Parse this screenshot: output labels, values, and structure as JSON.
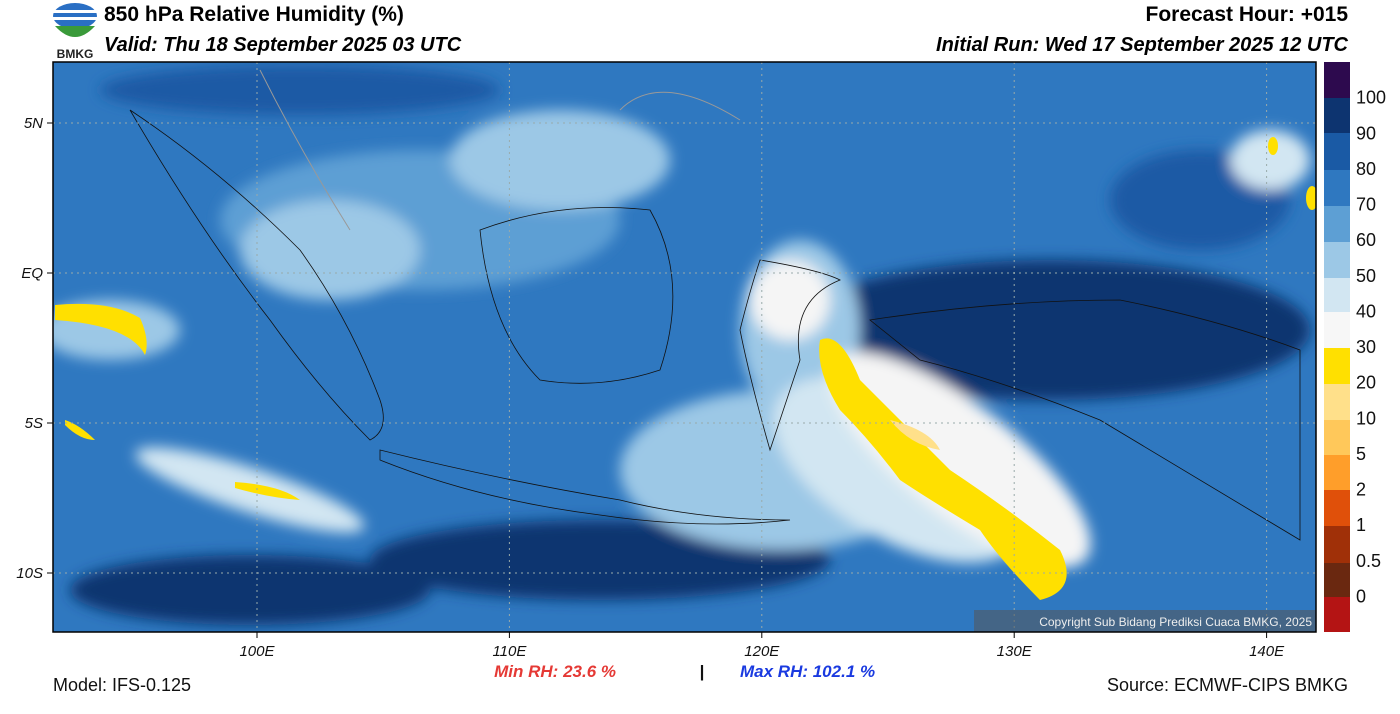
{
  "header": {
    "title": "850 hPa Relative Humidity (%)",
    "valid": "Valid: Thu 18 September 2025 03 UTC",
    "forecast_hour": "Forecast Hour: +015",
    "initial_run": "Initial Run: Wed 17 September 2025 12 UTC",
    "logo_text": "BMKG"
  },
  "map": {
    "lat_labels": [
      "5N",
      "EQ",
      "5S",
      "10S"
    ],
    "lon_labels": [
      "100E",
      "110E",
      "120E",
      "130E",
      "140E"
    ],
    "copyright": "Copyright Sub Bidang Prediksi Cuaca BMKG, 2025"
  },
  "colorbar": {
    "labels": [
      "100",
      "90",
      "80",
      "70",
      "60",
      "50",
      "40",
      "30",
      "20",
      "10",
      "5",
      "2",
      "1",
      "0.5",
      "0"
    ]
  },
  "footer": {
    "model": "Model: IFS-0.125",
    "min_rh": "Min RH:  23.6 %",
    "separator": "|",
    "max_rh": "Max RH: 102.1 %",
    "source": "Source: ECMWF-CIPS BMKG"
  }
}
